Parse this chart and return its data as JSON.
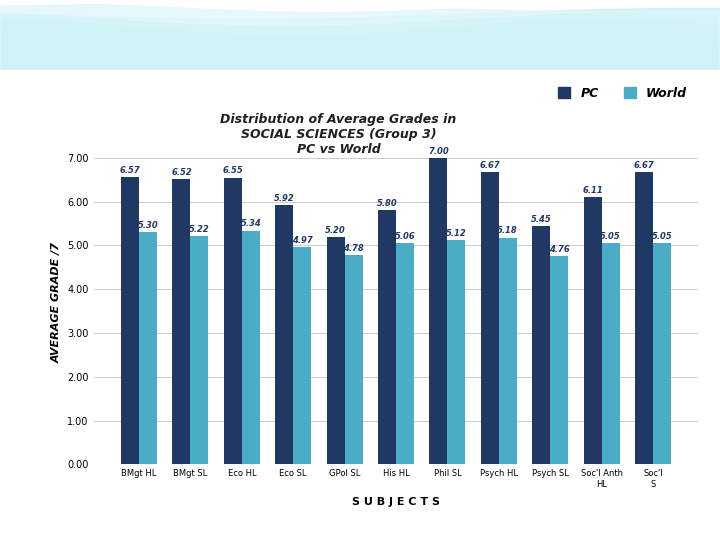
{
  "title": "Distribution of Average Grades in\nSOCIAL SCIENCES (Group 3)\nPC vs World",
  "xlabel": "S U B J E C T S",
  "ylabel": "AVERAGE GRADE /7",
  "categories": [
    "BMgt HL",
    "BMgt SL",
    "Eco HL",
    "Eco SL",
    "GPol SL",
    "His HL",
    "Phil SL",
    "Psych HL",
    "Psych SL",
    "Soc'l Anth\nHL",
    "Soc'l\nS"
  ],
  "pc_values": [
    6.57,
    6.52,
    6.55,
    5.92,
    5.2,
    5.8,
    7.0,
    6.67,
    5.45,
    6.11,
    6.67
  ],
  "world_values": [
    5.3,
    5.22,
    5.34,
    4.97,
    4.78,
    5.06,
    5.12,
    5.18,
    4.76,
    5.05,
    5.05
  ],
  "pc_color": "#1F3864",
  "world_color": "#4BACC6",
  "ylim": [
    0,
    7.4
  ],
  "yticks": [
    0.0,
    1.0,
    2.0,
    3.0,
    4.0,
    5.0,
    6.0,
    7.0
  ],
  "bar_width": 0.35,
  "title_fontsize": 9,
  "axis_label_fontsize": 8,
  "tick_fontsize": 7,
  "value_fontsize": 6,
  "legend_fontsize": 9,
  "background_color": "#ffffff"
}
